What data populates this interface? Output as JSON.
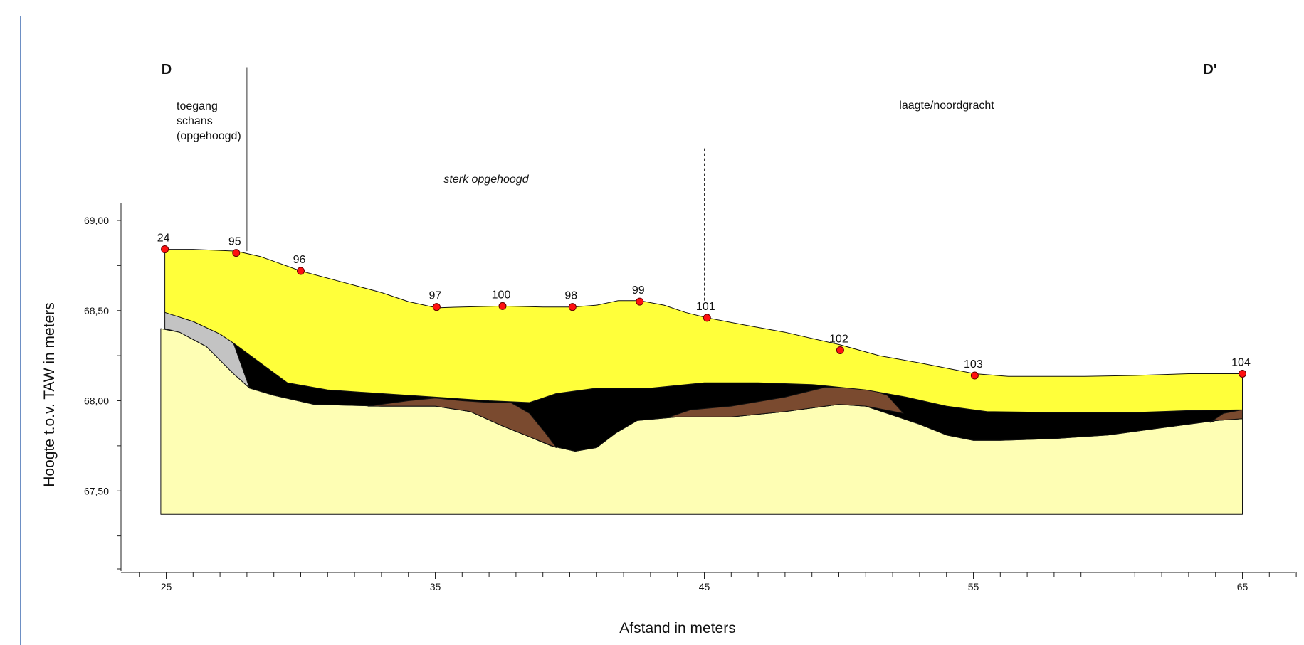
{
  "chart_data": {
    "type": "area",
    "title": "",
    "xlabel": "Afstand in meters",
    "ylabel": "Hoogte t.o.v. TAW in meters",
    "xlim": [
      23.3,
      67
    ],
    "ylim": [
      67.05,
      69.1
    ],
    "x_ticks": [
      25,
      35,
      45,
      55,
      65
    ],
    "x_tick_labels": [
      "25",
      "35",
      "45",
      "55",
      "65"
    ],
    "y_ticks": [
      67.5,
      68.0,
      68.5,
      69.0
    ],
    "y_tick_labels": [
      "67,50",
      "68,00",
      "68,50",
      "69,00"
    ],
    "section_start_label": "D",
    "section_end_label": "D'",
    "annotations": {
      "zone1": [
        "toegang",
        "schans",
        "(opgehoogd)"
      ],
      "zone2": "sterk opgehoogd",
      "zone3": "laagte/noordgracht"
    },
    "dividers": [
      {
        "x": 28.0,
        "y_top": 69.85,
        "y_bottom": 68.83,
        "style": "solid"
      },
      {
        "x": 45.0,
        "y_top": 69.4,
        "y_bottom": 68.55,
        "style": "dashed"
      }
    ],
    "points": [
      {
        "label": "24",
        "x": 24.95,
        "y": 68.84
      },
      {
        "label": "95",
        "x": 27.6,
        "y": 68.82
      },
      {
        "label": "96",
        "x": 30.0,
        "y": 68.72
      },
      {
        "label": "97",
        "x": 35.05,
        "y": 68.52
      },
      {
        "label": "100",
        "x": 37.5,
        "y": 68.525
      },
      {
        "label": "98",
        "x": 40.1,
        "y": 68.52
      },
      {
        "label": "99",
        "x": 42.6,
        "y": 68.55
      },
      {
        "label": "101",
        "x": 45.1,
        "y": 68.46
      },
      {
        "label": "102",
        "x": 50.05,
        "y": 68.28
      },
      {
        "label": "103",
        "x": 55.05,
        "y": 68.14
      },
      {
        "label": "104",
        "x": 65.0,
        "y": 68.15
      }
    ],
    "layers": [
      {
        "name": "base",
        "color": "#FEFEB4",
        "poly": [
          [
            24.8,
            68.4
          ],
          [
            25.5,
            68.38
          ],
          [
            26.5,
            68.3
          ],
          [
            27.5,
            68.15
          ],
          [
            28.1,
            68.07
          ],
          [
            29,
            68.03
          ],
          [
            30.5,
            67.98
          ],
          [
            33,
            67.97
          ],
          [
            35,
            67.97
          ],
          [
            36.3,
            67.94
          ],
          [
            37.5,
            67.86
          ],
          [
            38.5,
            67.8
          ],
          [
            39.3,
            67.75
          ],
          [
            40.2,
            67.72
          ],
          [
            41,
            67.74
          ],
          [
            41.7,
            67.82
          ],
          [
            42.5,
            67.89
          ],
          [
            44,
            67.91
          ],
          [
            46,
            67.91
          ],
          [
            48,
            67.94
          ],
          [
            50,
            67.98
          ],
          [
            51,
            67.97
          ],
          [
            52,
            67.92
          ],
          [
            53,
            67.87
          ],
          [
            54,
            67.81
          ],
          [
            55,
            67.78
          ],
          [
            56,
            67.78
          ],
          [
            58,
            67.79
          ],
          [
            60,
            67.81
          ],
          [
            62,
            67.85
          ],
          [
            64,
            67.89
          ],
          [
            65,
            67.9
          ],
          [
            65,
            67.37
          ],
          [
            24.8,
            67.37
          ]
        ]
      },
      {
        "name": "grey",
        "color": "#C3C3C3",
        "poly": [
          [
            24.95,
            68.49
          ],
          [
            26,
            68.44
          ],
          [
            27,
            68.37
          ],
          [
            27.5,
            68.32
          ],
          [
            28.1,
            68.07
          ],
          [
            27.5,
            68.15
          ],
          [
            26.5,
            68.3
          ],
          [
            25.5,
            68.38
          ],
          [
            24.95,
            68.4
          ]
        ]
      },
      {
        "name": "black",
        "color": "#000000",
        "poly": [
          [
            27.5,
            68.32
          ],
          [
            28.5,
            68.21
          ],
          [
            29.5,
            68.1
          ],
          [
            31,
            68.06
          ],
          [
            33,
            68.04
          ],
          [
            35,
            68.02
          ],
          [
            37,
            68.0
          ],
          [
            38.5,
            67.99
          ],
          [
            39.5,
            68.04
          ],
          [
            41,
            68.07
          ],
          [
            43,
            68.07
          ],
          [
            45,
            68.1
          ],
          [
            47,
            68.1
          ],
          [
            49,
            68.09
          ],
          [
            51,
            68.06
          ],
          [
            52.5,
            68.02
          ],
          [
            54,
            67.97
          ],
          [
            55.5,
            67.94
          ],
          [
            58,
            67.935
          ],
          [
            61,
            67.935
          ],
          [
            63,
            67.945
          ],
          [
            65,
            67.95
          ],
          [
            65,
            67.9
          ],
          [
            64,
            67.89
          ],
          [
            62,
            67.85
          ],
          [
            60,
            67.81
          ],
          [
            58,
            67.79
          ],
          [
            56,
            67.78
          ],
          [
            55,
            67.78
          ],
          [
            54,
            67.81
          ],
          [
            53,
            67.87
          ],
          [
            52,
            67.92
          ],
          [
            51,
            67.97
          ],
          [
            50,
            67.98
          ],
          [
            48,
            67.94
          ],
          [
            46,
            67.91
          ],
          [
            44,
            67.91
          ],
          [
            42.5,
            67.89
          ],
          [
            41.7,
            67.82
          ],
          [
            41,
            67.74
          ],
          [
            40.2,
            67.72
          ],
          [
            39.3,
            67.75
          ],
          [
            38.5,
            67.8
          ],
          [
            37.5,
            67.86
          ],
          [
            36.3,
            67.94
          ],
          [
            35,
            67.97
          ],
          [
            33,
            67.97
          ],
          [
            30.5,
            67.98
          ],
          [
            29,
            68.03
          ],
          [
            28.1,
            68.07
          ]
        ]
      },
      {
        "name": "brown1",
        "color": "#7A4A2F",
        "poly": [
          [
            32.5,
            67.97
          ],
          [
            34,
            68.0
          ],
          [
            35,
            68.015
          ],
          [
            36,
            68.0
          ],
          [
            37,
            67.99
          ],
          [
            37.8,
            67.99
          ],
          [
            38.5,
            67.93
          ],
          [
            39.1,
            67.82
          ],
          [
            39.5,
            67.74
          ],
          [
            38.5,
            67.8
          ],
          [
            37.5,
            67.86
          ],
          [
            36.3,
            67.94
          ],
          [
            35,
            67.97
          ],
          [
            33,
            67.97
          ]
        ]
      },
      {
        "name": "brown2",
        "color": "#7A4A2F",
        "poly": [
          [
            43.7,
            67.91
          ],
          [
            44.5,
            67.95
          ],
          [
            46,
            67.97
          ],
          [
            48,
            68.02
          ],
          [
            49.5,
            68.075
          ],
          [
            51,
            68.07
          ],
          [
            51.8,
            68.03
          ],
          [
            52.4,
            67.93
          ],
          [
            51,
            67.97
          ],
          [
            50,
            67.98
          ],
          [
            48,
            67.94
          ],
          [
            46,
            67.91
          ],
          [
            44,
            67.91
          ]
        ]
      },
      {
        "name": "brown3",
        "color": "#7A4A2F",
        "poly": [
          [
            63.8,
            67.88
          ],
          [
            64.3,
            67.93
          ],
          [
            65,
            67.95
          ],
          [
            65,
            67.9
          ],
          [
            64,
            67.89
          ]
        ]
      },
      {
        "name": "fill",
        "color": "#FFFF3A",
        "poly": [
          [
            24.95,
            68.84
          ],
          [
            26,
            68.84
          ],
          [
            27.6,
            68.83
          ],
          [
            28.5,
            68.8
          ],
          [
            30,
            68.72
          ],
          [
            31.5,
            68.66
          ],
          [
            33,
            68.6
          ],
          [
            34,
            68.55
          ],
          [
            35.05,
            68.515
          ],
          [
            36,
            68.52
          ],
          [
            37.5,
            68.525
          ],
          [
            39,
            68.52
          ],
          [
            40.1,
            68.52
          ],
          [
            41,
            68.53
          ],
          [
            41.8,
            68.555
          ],
          [
            42.6,
            68.555
          ],
          [
            43.5,
            68.53
          ],
          [
            44.3,
            68.49
          ],
          [
            45.1,
            68.46
          ],
          [
            46.5,
            68.42
          ],
          [
            48,
            68.38
          ],
          [
            50.05,
            68.31
          ],
          [
            51.5,
            68.25
          ],
          [
            53,
            68.21
          ],
          [
            55.05,
            68.15
          ],
          [
            56.3,
            68.135
          ],
          [
            59,
            68.135
          ],
          [
            61,
            68.14
          ],
          [
            63,
            68.15
          ],
          [
            65,
            68.15
          ],
          [
            65,
            67.95
          ],
          [
            63,
            67.945
          ],
          [
            61,
            67.935
          ],
          [
            58,
            67.935
          ],
          [
            55.5,
            67.94
          ],
          [
            54,
            67.97
          ],
          [
            52.5,
            68.02
          ],
          [
            51,
            68.06
          ],
          [
            49,
            68.09
          ],
          [
            47,
            68.1
          ],
          [
            45,
            68.1
          ],
          [
            43,
            68.07
          ],
          [
            41,
            68.07
          ],
          [
            39.5,
            68.04
          ],
          [
            38.5,
            67.99
          ],
          [
            37,
            68.0
          ],
          [
            35,
            68.02
          ],
          [
            33,
            68.04
          ],
          [
            31,
            68.06
          ],
          [
            29.5,
            68.1
          ],
          [
            28.5,
            68.21
          ],
          [
            27.5,
            68.32
          ],
          [
            27,
            68.37
          ],
          [
            26,
            68.44
          ],
          [
            24.95,
            68.49
          ]
        ]
      }
    ]
  }
}
